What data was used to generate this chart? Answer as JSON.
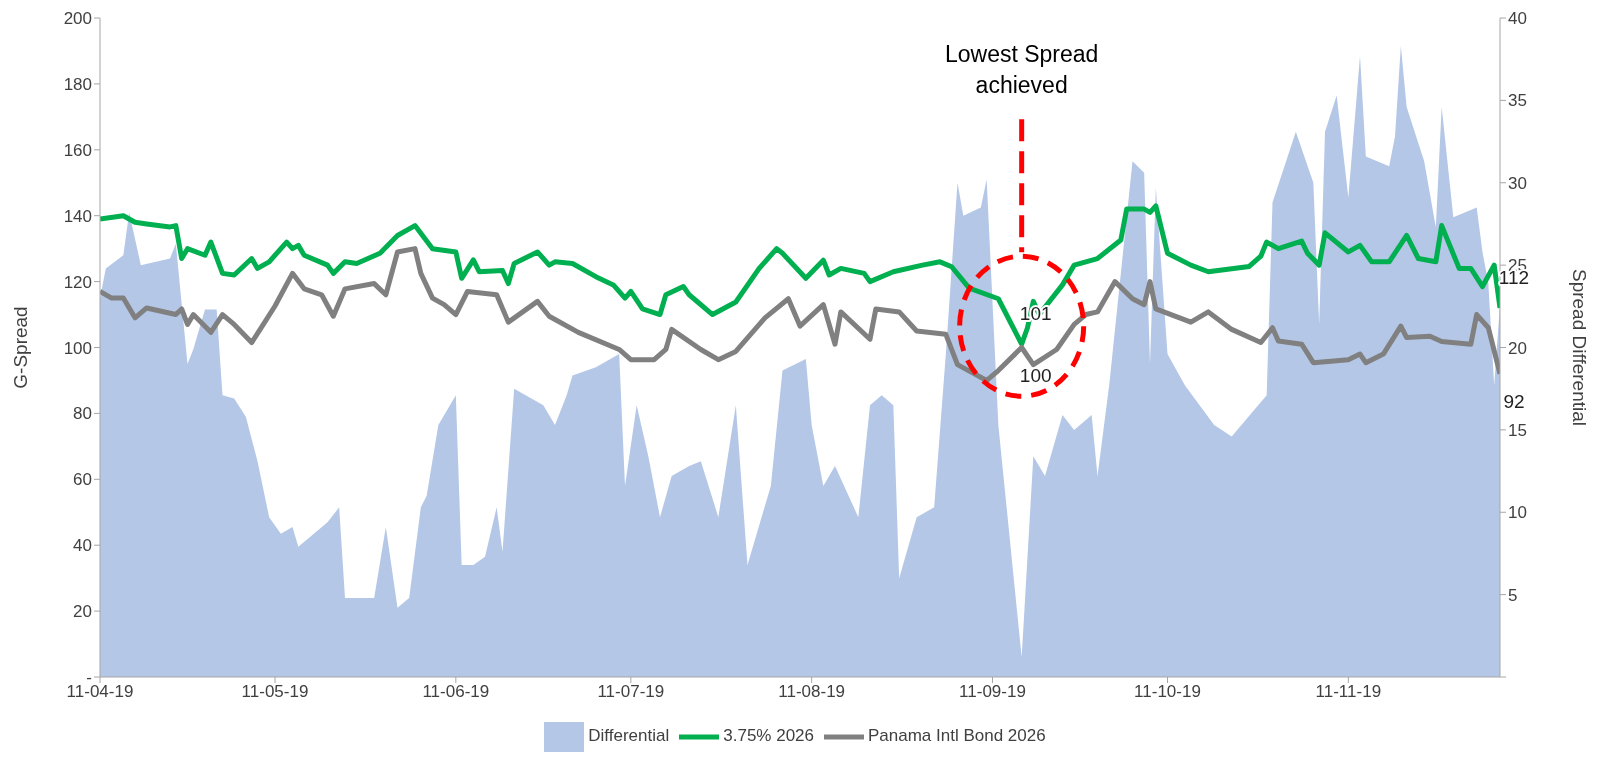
{
  "chart_data": {
    "type": "line",
    "ylabel": "G-Spread",
    "y2label": "Spread Differential",
    "annotations": [
      "Lowest Spread achieved"
    ],
    "xlim": [
      "2019-04-11",
      "2019-12-07"
    ],
    "xticks": [
      {
        "value": "2019-04-11",
        "label": "11-04-19"
      },
      {
        "value": "2019-05-11",
        "label": "11-05-19"
      },
      {
        "value": "2019-06-11",
        "label": "11-06-19"
      },
      {
        "value": "2019-07-11",
        "label": "11-07-19"
      },
      {
        "value": "2019-08-11",
        "label": "11-08-19"
      },
      {
        "value": "2019-09-11",
        "label": "11-09-19"
      },
      {
        "value": "2019-10-11",
        "label": "11-10-19"
      },
      {
        "value": "2019-11-11",
        "label": "11-11-19"
      }
    ],
    "ylim": [
      0,
      200
    ],
    "yticks": [
      {
        "value": 0,
        "label": "-"
      },
      20,
      40,
      60,
      80,
      100,
      120,
      140,
      160,
      180,
      200
    ],
    "y2lim": [
      0,
      40
    ],
    "y2ticks": [
      {
        "value": 0,
        "label": null
      },
      5,
      10,
      15,
      20,
      25,
      30,
      35,
      40
    ],
    "grid": false,
    "legend": "bottom",
    "marker": "none",
    "line_style": "solid",
    "series": [
      {
        "name": "Differential",
        "type": "area",
        "axis": "y2",
        "color": "#b4c7e7",
        "x": [
          "2019-04-11",
          "2019-04-12",
          "2019-04-15",
          "2019-04-16",
          "2019-04-18",
          "2019-04-23",
          "2019-04-24",
          "2019-04-26",
          "2019-04-27",
          "2019-04-29",
          "2019-05-01",
          "2019-05-02",
          "2019-05-04",
          "2019-05-06",
          "2019-05-08",
          "2019-05-10",
          "2019-05-12",
          "2019-05-14",
          "2019-05-15",
          "2019-05-17",
          "2019-05-20",
          "2019-05-22",
          "2019-05-23",
          "2019-05-28",
          "2019-05-30",
          "2019-06-01",
          "2019-06-03",
          "2019-06-05",
          "2019-06-06",
          "2019-06-08",
          "2019-06-11",
          "2019-06-12",
          "2019-06-14",
          "2019-06-16",
          "2019-06-18",
          "2019-06-19",
          "2019-06-21",
          "2019-06-26",
          "2019-06-28",
          "2019-06-30",
          "2019-07-01",
          "2019-07-05",
          "2019-07-09",
          "2019-07-10",
          "2019-07-12",
          "2019-07-14",
          "2019-07-16",
          "2019-07-18",
          "2019-07-21",
          "2019-07-23",
          "2019-07-26",
          "2019-07-29",
          "2019-07-31",
          "2019-08-04",
          "2019-08-06",
          "2019-08-10",
          "2019-08-11",
          "2019-08-13",
          "2019-08-15",
          "2019-08-19",
          "2019-08-21",
          "2019-08-23",
          "2019-08-25",
          "2019-08-26",
          "2019-08-29",
          "2019-09-01",
          "2019-09-03",
          "2019-09-05",
          "2019-09-06",
          "2019-09-09",
          "2019-09-10",
          "2019-09-12",
          "2019-09-16",
          "2019-09-18",
          "2019-09-20",
          "2019-09-23",
          "2019-09-25",
          "2019-09-28",
          "2019-09-29",
          "2019-10-01",
          "2019-10-05",
          "2019-10-07",
          "2019-10-08",
          "2019-10-09",
          "2019-10-11",
          "2019-10-14",
          "2019-10-19",
          "2019-10-22",
          "2019-10-28",
          "2019-10-29",
          "2019-11-02",
          "2019-11-05",
          "2019-11-06",
          "2019-11-07",
          "2019-11-09",
          "2019-11-11",
          "2019-11-13",
          "2019-11-14",
          "2019-11-18",
          "2019-11-19",
          "2019-11-20",
          "2019-11-21",
          "2019-11-24",
          "2019-11-26",
          "2019-11-27",
          "2019-11-29",
          "2019-12-03",
          "2019-12-04",
          "2019-12-05",
          "2019-12-06",
          "2019-12-07"
        ],
        "values": [
          23,
          24.8,
          25.6,
          28.2,
          25,
          25.4,
          26.3,
          19,
          19.9,
          22.3,
          22.3,
          17.1,
          16.9,
          15.8,
          13.1,
          9.7,
          8.7,
          9.1,
          7.9,
          8.5,
          9.4,
          10.3,
          4.8,
          4.8,
          9.1,
          4.2,
          4.8,
          10.3,
          11,
          15.3,
          17.1,
          6.8,
          6.8,
          7.3,
          10.3,
          7.6,
          17.5,
          16.5,
          15.3,
          17.1,
          18.3,
          18.8,
          19.6,
          11.6,
          16.5,
          13.4,
          9.7,
          12.2,
          12.8,
          13.1,
          9.7,
          16.5,
          6.8,
          11.6,
          18.6,
          19.3,
          15.3,
          11.6,
          12.8,
          9.7,
          16.5,
          17.1,
          16.5,
          6,
          9.7,
          10.3,
          19.6,
          30,
          28,
          28.5,
          30.2,
          15.3,
          1.2,
          13.4,
          12.2,
          15.9,
          15,
          15.9,
          12.2,
          17.7,
          31.3,
          30.6,
          19,
          29.7,
          19.6,
          17.7,
          15.3,
          14.6,
          17.1,
          28.8,
          33.1,
          30,
          21.4,
          33.1,
          35.3,
          29.1,
          37.7,
          31.6,
          31,
          32.8,
          38.3,
          34.6,
          31.3,
          27.3,
          34.6,
          27.9,
          28.5,
          25.8,
          23.9,
          17.7,
          22.6
        ]
      },
      {
        "name": "3.75% 2026",
        "color": "#00b050",
        "x": [
          "2019-04-11",
          "2019-04-15",
          "2019-04-17",
          "2019-04-19",
          "2019-04-23",
          "2019-04-24",
          "2019-04-25",
          "2019-04-26",
          "2019-04-29",
          "2019-04-30",
          "2019-05-02",
          "2019-05-04",
          "2019-05-07",
          "2019-05-08",
          "2019-05-10",
          "2019-05-13",
          "2019-05-14",
          "2019-05-15",
          "2019-05-16",
          "2019-05-20",
          "2019-05-21",
          "2019-05-23",
          "2019-05-25",
          "2019-05-29",
          "2019-06-01",
          "2019-06-04",
          "2019-06-07",
          "2019-06-11",
          "2019-06-12",
          "2019-06-14",
          "2019-06-15",
          "2019-06-19",
          "2019-06-20",
          "2019-06-21",
          "2019-06-25",
          "2019-06-27",
          "2019-06-28",
          "2019-07-01",
          "2019-07-05",
          "2019-07-08",
          "2019-07-10",
          "2019-07-11",
          "2019-07-13",
          "2019-07-16",
          "2019-07-17",
          "2019-07-20",
          "2019-07-21",
          "2019-07-25",
          "2019-07-29",
          "2019-08-02",
          "2019-08-05",
          "2019-08-06",
          "2019-08-10",
          "2019-08-13",
          "2019-08-14",
          "2019-08-16",
          "2019-08-20",
          "2019-08-21",
          "2019-08-25",
          "2019-08-30",
          "2019-09-02",
          "2019-09-04",
          "2019-09-07",
          "2019-09-12",
          "2019-09-16",
          "2019-09-17",
          "2019-09-18",
          "2019-09-19",
          "2019-09-23",
          "2019-09-25",
          "2019-09-29",
          "2019-10-03",
          "2019-10-04",
          "2019-10-07",
          "2019-10-08",
          "2019-10-09",
          "2019-10-11",
          "2019-10-15",
          "2019-10-18",
          "2019-10-25",
          "2019-10-27",
          "2019-10-28",
          "2019-10-30",
          "2019-11-03",
          "2019-11-04",
          "2019-11-06",
          "2019-11-07",
          "2019-11-11",
          "2019-11-13",
          "2019-11-15",
          "2019-11-18",
          "2019-11-21",
          "2019-11-23",
          "2019-11-26",
          "2019-11-27",
          "2019-11-30",
          "2019-12-02",
          "2019-12-04",
          "2019-12-06",
          "2019-12-07"
        ],
        "values": [
          139,
          140,
          138,
          137.5,
          136.6,
          137,
          127,
          130,
          128,
          132,
          122.5,
          122,
          127,
          124,
          126,
          132,
          130,
          131,
          128,
          125,
          122.5,
          126,
          125.5,
          128.6,
          134,
          137,
          130,
          129,
          121,
          126.6,
          123,
          123.4,
          119.4,
          125.5,
          129,
          125,
          126,
          125.5,
          121.5,
          119,
          115,
          117,
          111.7,
          110,
          116,
          118.5,
          116,
          110,
          113.8,
          124,
          130,
          128.6,
          121,
          126.5,
          122,
          124,
          122.5,
          120,
          123,
          125,
          126,
          124.5,
          118,
          114.8,
          101,
          106,
          114,
          110,
          119,
          125,
          127,
          132.6,
          142,
          142,
          141,
          143,
          128.6,
          125,
          123,
          124.6,
          127.7,
          132,
          130,
          132.3,
          128.6,
          125,
          134.8,
          129,
          131,
          126,
          126,
          134,
          127,
          126,
          137,
          124,
          124,
          118.5,
          125,
          112
        ],
        "value_labels": [
          null,
          null,
          null,
          null,
          null,
          null,
          null,
          null,
          null,
          null,
          null,
          null,
          null,
          null,
          null,
          null,
          null,
          null,
          null,
          null,
          null,
          null,
          null,
          null,
          null,
          null,
          null,
          null,
          null,
          null,
          null,
          null,
          null,
          null,
          null,
          null,
          null,
          null,
          null,
          null,
          null,
          null,
          null,
          null,
          null,
          null,
          null,
          null,
          null,
          null,
          null,
          null,
          null,
          null,
          null,
          null,
          null,
          null,
          null,
          null,
          null,
          null,
          null,
          null,
          "101",
          null,
          null,
          null,
          null,
          null,
          null,
          null,
          null,
          null,
          null,
          null,
          null,
          null,
          null,
          null,
          null,
          null,
          null,
          null,
          null,
          null,
          null,
          null,
          null,
          null,
          null,
          null,
          null,
          null,
          null,
          null,
          null,
          null,
          null,
          "112"
        ]
      },
      {
        "name": "Panama Intl Bond 2026",
        "color": "#808080",
        "x": [
          "2019-04-11",
          "2019-04-13",
          "2019-04-15",
          "2019-04-17",
          "2019-04-19",
          "2019-04-24",
          "2019-04-25",
          "2019-04-26",
          "2019-04-27",
          "2019-04-30",
          "2019-05-02",
          "2019-05-04",
          "2019-05-07",
          "2019-05-09",
          "2019-05-11",
          "2019-05-14",
          "2019-05-16",
          "2019-05-19",
          "2019-05-21",
          "2019-05-23",
          "2019-05-28",
          "2019-05-30",
          "2019-06-01",
          "2019-06-04",
          "2019-06-05",
          "2019-06-07",
          "2019-06-09",
          "2019-06-11",
          "2019-06-13",
          "2019-06-18",
          "2019-06-20",
          "2019-06-25",
          "2019-06-27",
          "2019-07-02",
          "2019-07-09",
          "2019-07-11",
          "2019-07-15",
          "2019-07-17",
          "2019-07-18",
          "2019-07-23",
          "2019-07-26",
          "2019-07-29",
          "2019-08-03",
          "2019-08-07",
          "2019-08-09",
          "2019-08-13",
          "2019-08-15",
          "2019-08-16",
          "2019-08-21",
          "2019-08-22",
          "2019-08-26",
          "2019-08-29",
          "2019-09-03",
          "2019-09-05",
          "2019-09-10",
          "2019-09-12",
          "2019-09-16",
          "2019-09-18",
          "2019-09-22",
          "2019-09-25",
          "2019-09-27",
          "2019-09-29",
          "2019-10-02",
          "2019-10-05",
          "2019-10-07",
          "2019-10-08",
          "2019-10-09",
          "2019-10-15",
          "2019-10-18",
          "2019-10-22",
          "2019-10-27",
          "2019-10-29",
          "2019-10-30",
          "2019-11-03",
          "2019-11-05",
          "2019-11-11",
          "2019-11-13",
          "2019-11-14",
          "2019-11-17",
          "2019-11-20",
          "2019-11-21",
          "2019-11-25",
          "2019-11-27",
          "2019-12-02",
          "2019-12-03",
          "2019-12-05",
          "2019-12-07"
        ],
        "values": [
          117,
          115,
          115,
          109,
          112,
          110,
          111.7,
          107,
          110,
          104.6,
          110,
          107,
          101.5,
          107,
          112.6,
          122.5,
          117.8,
          116,
          109.5,
          117.8,
          119.4,
          116,
          129,
          130,
          122.5,
          115,
          113,
          110,
          117,
          116,
          107.7,
          114,
          109.5,
          104.6,
          99.4,
          96.3,
          96.3,
          99.4,
          105.5,
          99.4,
          96.3,
          98.8,
          109,
          114.8,
          106.5,
          113,
          101,
          110.8,
          102.5,
          111.7,
          110.8,
          105,
          104,
          94.8,
          90,
          93,
          100,
          94.8,
          99.4,
          107,
          110,
          110.8,
          120,
          114.8,
          113,
          120,
          111.7,
          107.7,
          110.8,
          105.5,
          101.5,
          106,
          102,
          101,
          95.4,
          96.3,
          98,
          95.4,
          98,
          106.5,
          103,
          103.4,
          101.8,
          101,
          110,
          106,
          92
        ],
        "value_labels": [
          null,
          null,
          null,
          null,
          null,
          null,
          null,
          null,
          null,
          null,
          null,
          null,
          null,
          null,
          null,
          null,
          null,
          null,
          null,
          null,
          null,
          null,
          null,
          null,
          null,
          null,
          null,
          null,
          null,
          null,
          null,
          null,
          null,
          null,
          null,
          null,
          null,
          null,
          null,
          null,
          null,
          null,
          null,
          null,
          null,
          null,
          null,
          null,
          null,
          null,
          null,
          null,
          null,
          null,
          null,
          null,
          "100",
          null,
          null,
          null,
          null,
          null,
          null,
          null,
          null,
          null,
          null,
          null,
          null,
          null,
          null,
          null,
          null,
          null,
          null,
          null,
          null,
          null,
          null,
          null,
          null,
          null,
          null,
          null,
          null,
          null,
          "92"
        ]
      }
    ]
  }
}
